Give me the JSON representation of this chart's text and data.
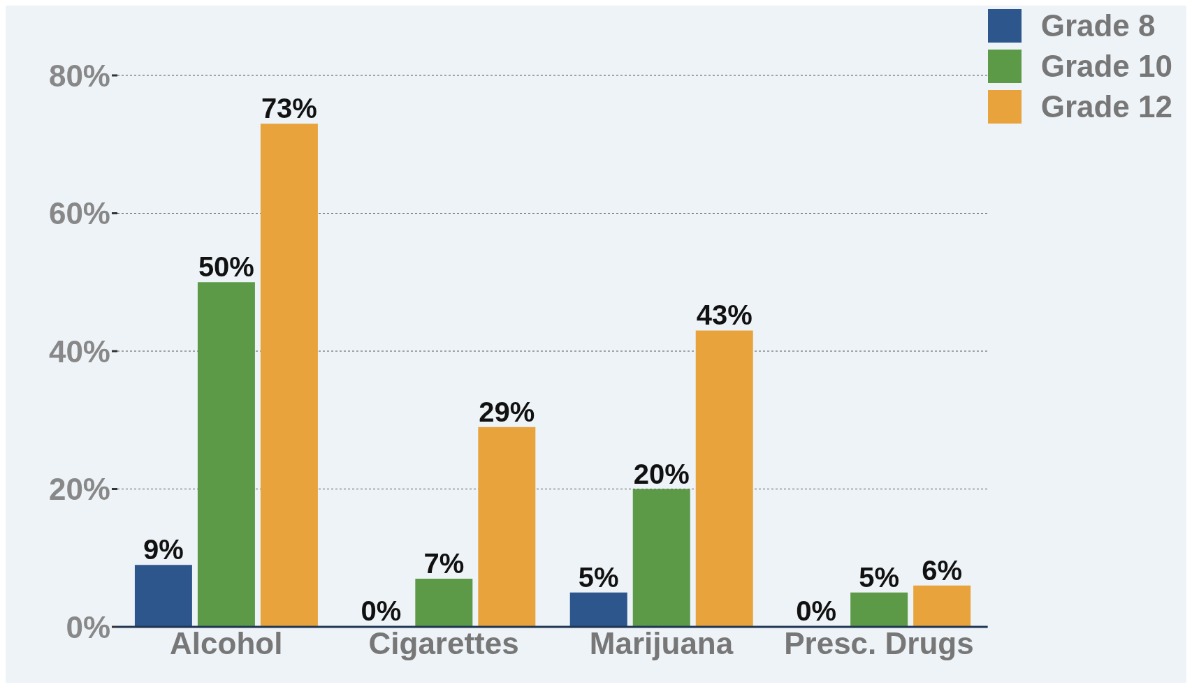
{
  "chart_data": {
    "type": "bar",
    "categories": [
      "Alcohol",
      "Cigarettes",
      "Marijuana",
      "Presc. Drugs"
    ],
    "series": [
      {
        "name": "Grade 8",
        "color": "#2d568c",
        "values": [
          9,
          0,
          5,
          0
        ],
        "value_labels": [
          "9%",
          "0%",
          "5%",
          "0%"
        ]
      },
      {
        "name": "Grade 10",
        "color": "#5c9a48",
        "values": [
          50,
          7,
          20,
          5
        ],
        "value_labels": [
          "50%",
          "7%",
          "20%",
          "5%"
        ]
      },
      {
        "name": "Grade 12",
        "color": "#e8a33c",
        "values": [
          73,
          29,
          43,
          6
        ],
        "value_labels": [
          "73%",
          "29%",
          "43%",
          "6%"
        ]
      }
    ],
    "ylim": [
      0,
      80
    ],
    "yticks": [
      {
        "value": 0,
        "label": "0%"
      },
      {
        "value": 20,
        "label": "20%"
      },
      {
        "value": 40,
        "label": "40%"
      },
      {
        "value": 60,
        "label": "60%"
      },
      {
        "value": 80,
        "label": "80%"
      }
    ],
    "grid": "y",
    "legend": "top right"
  }
}
